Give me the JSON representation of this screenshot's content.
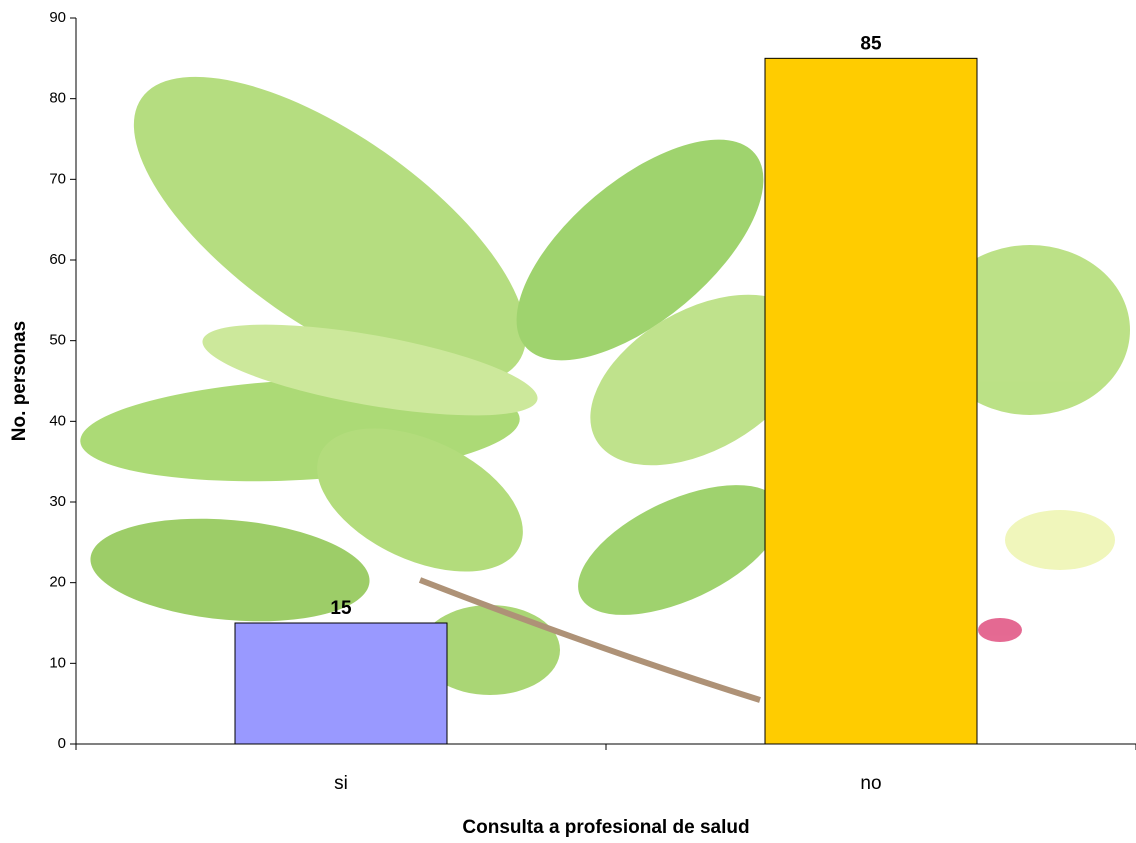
{
  "chart_data": {
    "type": "bar",
    "categories": [
      "si",
      "no"
    ],
    "values": [
      15,
      85
    ],
    "colors": [
      "#9999ff",
      "#ffcc00"
    ],
    "x_label": "Consulta a profesional de salud",
    "y_label": "No. personas",
    "ylim": [
      0,
      90
    ],
    "yticks": [
      0,
      10,
      20,
      30,
      40,
      50,
      60,
      70,
      80,
      90
    ],
    "grid": false
  }
}
